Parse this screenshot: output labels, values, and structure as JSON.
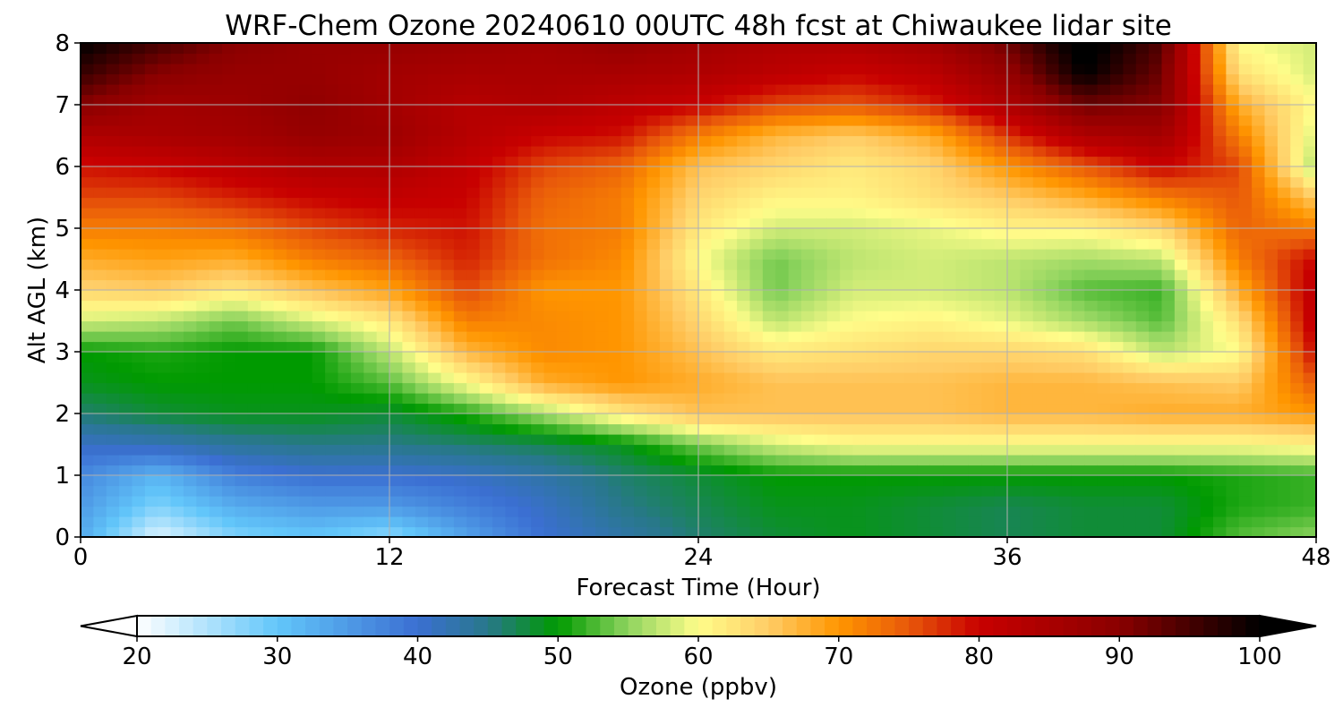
{
  "chart_data": {
    "type": "heatmap",
    "title": "WRF-Chem Ozone  20240610 00UTC 48h fcst at Chiwaukee lidar site",
    "xlabel": "Forecast Time (Hour)",
    "ylabel": "Alt AGL (km)",
    "xlim": [
      0,
      48
    ],
    "ylim": [
      0,
      8
    ],
    "xticks": [
      "0",
      "12",
      "24",
      "36",
      "48"
    ],
    "yticks": [
      "0",
      "1",
      "2",
      "3",
      "4",
      "5",
      "6",
      "7",
      "8"
    ],
    "grid": true,
    "x_hours": [
      0,
      3,
      6,
      9,
      12,
      15,
      18,
      21,
      24,
      27,
      30,
      33,
      36,
      39,
      42,
      45,
      48
    ],
    "y_km": [
      0,
      0.5,
      1,
      1.5,
      2,
      2.5,
      3,
      3.5,
      4,
      4.5,
      5,
      5.5,
      6,
      6.5,
      7,
      7.5,
      8
    ],
    "ozone_ppbv": [
      [
        33,
        22,
        28,
        30,
        27,
        34,
        40,
        43,
        46,
        48,
        49,
        48,
        47,
        48,
        48,
        53,
        55
      ],
      [
        35,
        28,
        33,
        35,
        35,
        38,
        41,
        45,
        47,
        49,
        49,
        48,
        47,
        48,
        48,
        51,
        52
      ],
      [
        37,
        32,
        38,
        40,
        40,
        41,
        43,
        46,
        48,
        50,
        50,
        50,
        50,
        50,
        50,
        51,
        52
      ],
      [
        41,
        42,
        44,
        45,
        45,
        46,
        47,
        49,
        54,
        58,
        60,
        60,
        60,
        60,
        60,
        60,
        61
      ],
      [
        46,
        48,
        49,
        49,
        48,
        51,
        56,
        62,
        66,
        66,
        66,
        66,
        67,
        67,
        68,
        68,
        70
      ],
      [
        49,
        50,
        50,
        50,
        53,
        60,
        68,
        70,
        68,
        66,
        66,
        66,
        67,
        67,
        66,
        65,
        75
      ],
      [
        50,
        51,
        50,
        50,
        57,
        67,
        71,
        70,
        66,
        62,
        63,
        64,
        64,
        63,
        57,
        60,
        80
      ],
      [
        58,
        57,
        54,
        58,
        62,
        72,
        71,
        70,
        64,
        57,
        60,
        61,
        59,
        56,
        53,
        63,
        82
      ],
      [
        64,
        65,
        62,
        66,
        69,
        76,
        70,
        70,
        62,
        54,
        58,
        58,
        57,
        53,
        52,
        68,
        82
      ],
      [
        68,
        69,
        68,
        72,
        74,
        78,
        73,
        71,
        60,
        54,
        57,
        58,
        57,
        56,
        57,
        72,
        80
      ],
      [
        72,
        72,
        73,
        76,
        78,
        79,
        73,
        72,
        62,
        58,
        58,
        59,
        61,
        61,
        64,
        74,
        72
      ],
      [
        76,
        76,
        78,
        80,
        81,
        80,
        74,
        72,
        64,
        61,
        61,
        63,
        65,
        68,
        72,
        75,
        65
      ],
      [
        79,
        80,
        82,
        84,
        84,
        81,
        76,
        74,
        66,
        64,
        62,
        64,
        70,
        75,
        80,
        76,
        56
      ],
      [
        84,
        85,
        86,
        88,
        87,
        83,
        80,
        79,
        72,
        67,
        65,
        68,
        77,
        84,
        86,
        72,
        58
      ],
      [
        90,
        86,
        87,
        89,
        86,
        83,
        84,
        82,
        80,
        76,
        75,
        78,
        84,
        92,
        90,
        68,
        60
      ],
      [
        96,
        90,
        88,
        88,
        86,
        85,
        85,
        85,
        84,
        82,
        80,
        82,
        88,
        100,
        92,
        63,
        58
      ],
      [
        100,
        95,
        90,
        88,
        88,
        87,
        86,
        88,
        86,
        84,
        84,
        86,
        92,
        102,
        94,
        60,
        58
      ]
    ]
  },
  "colorbar": {
    "label": "Ozone  (ppbv)",
    "min": 20,
    "max": 100,
    "extend": "both",
    "ticks": [
      "20",
      "30",
      "40",
      "50",
      "60",
      "70",
      "80",
      "90",
      "100"
    ],
    "colormap_stops": [
      {
        "value": 20,
        "color": "#ffffff"
      },
      {
        "value": 30,
        "color": "#62c6fa"
      },
      {
        "value": 40,
        "color": "#3b6fd2"
      },
      {
        "value": 45,
        "color": "#28788a"
      },
      {
        "value": 50,
        "color": "#009a00"
      },
      {
        "value": 55,
        "color": "#8fd45f"
      },
      {
        "value": 60,
        "color": "#fffd8a"
      },
      {
        "value": 65,
        "color": "#ffcc66"
      },
      {
        "value": 70,
        "color": "#ff9600"
      },
      {
        "value": 75,
        "color": "#e8580a"
      },
      {
        "value": 80,
        "color": "#c80000"
      },
      {
        "value": 90,
        "color": "#8a0000"
      },
      {
        "value": 100,
        "color": "#000000"
      }
    ]
  }
}
